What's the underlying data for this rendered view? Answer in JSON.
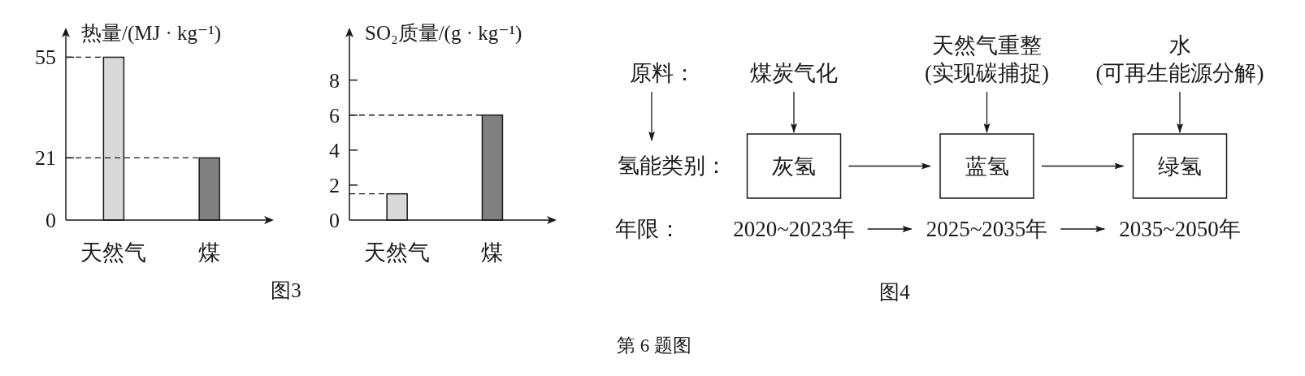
{
  "chart_data": [
    {
      "type": "bar",
      "ylabel": "热量/(MJ · kg⁻¹)",
      "categories": [
        "天然气",
        "煤"
      ],
      "values": [
        55,
        21
      ],
      "colors": [
        "#d9d9d9",
        "#808080"
      ],
      "ylim": [
        0,
        65
      ],
      "yticks": [
        0,
        21,
        55
      ],
      "ref_lines": [
        {
          "axis": "y",
          "value": 55,
          "line_style": "dashed"
        },
        {
          "axis": "y",
          "value": 21,
          "line_style": "dashed"
        }
      ],
      "annotations": [
        "图3"
      ]
    },
    {
      "type": "bar",
      "ylabel": "SO₂质量/(g · kg⁻¹)",
      "categories": [
        "天然气",
        "煤"
      ],
      "values": [
        1.5,
        6
      ],
      "colors": [
        "#d9d9d9",
        "#808080"
      ],
      "ylim": [
        0,
        11
      ],
      "yticks": [
        0,
        2,
        4,
        6,
        8
      ],
      "ref_lines": [
        {
          "axis": "y",
          "value": 6,
          "line_style": "dashed"
        },
        {
          "axis": "y",
          "value": 1.5,
          "line_style": "dashed"
        }
      ]
    },
    {
      "type": "other",
      "categories": [
        "灰氢",
        "蓝氢",
        "绿氢"
      ],
      "annotations": [
        "原料：",
        "煤炭气化",
        "天然气重整",
        "(实现碳捕捉)",
        "水",
        "(可再生能源分解)",
        "氢能类别：",
        "年限：",
        "2020~2023年",
        "2025~2035年",
        "2035~2050年",
        "图4",
        "第 6 题图"
      ]
    }
  ]
}
